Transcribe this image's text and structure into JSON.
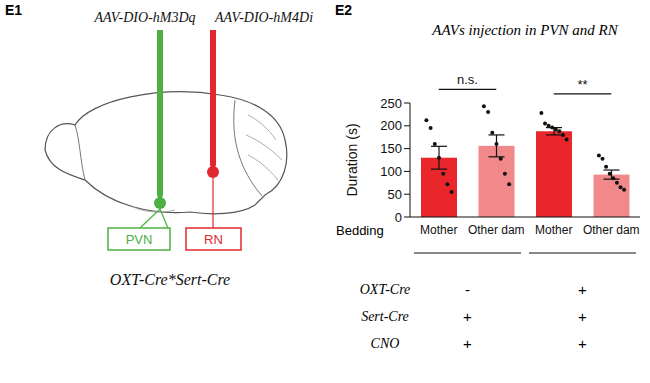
{
  "diagram": {
    "panel": "E1",
    "left_virus": "AAV-DIO-hM3Dq",
    "right_virus": "AAV-DIO-hM4Di",
    "left_region": "PVN",
    "right_region": "RN",
    "mouse_line": "OXT-Cre*Sert-Cre"
  },
  "chart_data": {
    "type": "bar",
    "panel": "E2",
    "title": "AAVs injection in PVN and RN",
    "y_label": "Duration (s)",
    "x_label": "Bedding",
    "categories": [
      "Mother",
      "Other dam",
      "Mother",
      "Other dam"
    ],
    "values": [
      130,
      156,
      188,
      93
    ],
    "errors": [
      25,
      24,
      8,
      10
    ],
    "points": [
      [
        212,
        195,
        160,
        130,
        95,
        72,
        55
      ],
      [
        243,
        230,
        185,
        160,
        128,
        95,
        72
      ],
      [
        228,
        205,
        200,
        196,
        192,
        188,
        180,
        170
      ],
      [
        135,
        128,
        110,
        95,
        85,
        75,
        65,
        60
      ]
    ],
    "colors": [
      "#e8262b",
      "#f1898b",
      "#e8262b",
      "#f1898b"
    ],
    "ylim": [
      0,
      250
    ],
    "yticks": [
      0,
      50,
      100,
      150,
      200,
      250
    ],
    "significance": [
      {
        "label": "n.s.",
        "bars": [
          0,
          1
        ]
      },
      {
        "label": "**",
        "bars": [
          2,
          3
        ]
      }
    ],
    "condition_groups": [
      [
        0,
        1
      ],
      [
        2,
        3
      ]
    ],
    "conditions": [
      {
        "label": "OXT-Cre",
        "values": [
          "-",
          "+"
        ]
      },
      {
        "label": "Sert-Cre",
        "values": [
          "+",
          "+"
        ]
      },
      {
        "label": "CNO",
        "values": [
          "+",
          "+"
        ]
      }
    ]
  }
}
